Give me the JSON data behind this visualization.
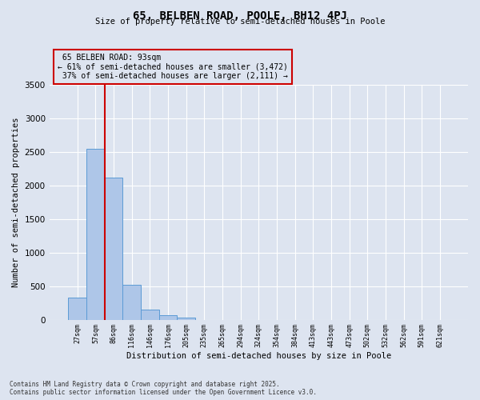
{
  "title": "65, BELBEN ROAD, POOLE, BH12 4PJ",
  "subtitle": "Size of property relative to semi-detached houses in Poole",
  "xlabel": "Distribution of semi-detached houses by size in Poole",
  "ylabel": "Number of semi-detached properties",
  "bar_labels": [
    "27sqm",
    "57sqm",
    "86sqm",
    "116sqm",
    "146sqm",
    "176sqm",
    "205sqm",
    "235sqm",
    "265sqm",
    "294sqm",
    "324sqm",
    "354sqm",
    "384sqm",
    "413sqm",
    "443sqm",
    "473sqm",
    "502sqm",
    "532sqm",
    "562sqm",
    "591sqm",
    "621sqm"
  ],
  "bar_values": [
    330,
    2540,
    2120,
    520,
    150,
    70,
    30,
    0,
    0,
    0,
    0,
    0,
    0,
    0,
    0,
    0,
    0,
    0,
    0,
    0,
    0
  ],
  "bar_color": "#aec6e8",
  "bar_edge_color": "#5b9bd5",
  "property_line_bin": 2,
  "property_line_label": "65 BELBEN ROAD: 93sqm",
  "smaller_pct": "61%",
  "smaller_count": "3,472",
  "larger_pct": "37%",
  "larger_count": "2,111",
  "annotation_box_color": "#cc0000",
  "vline_color": "#cc0000",
  "ylim": [
    0,
    3500
  ],
  "yticks": [
    0,
    500,
    1000,
    1500,
    2000,
    2500,
    3000,
    3500
  ],
  "bg_color": "#dde4f0",
  "grid_color": "#ffffff",
  "footer_line1": "Contains HM Land Registry data © Crown copyright and database right 2025.",
  "footer_line2": "Contains public sector information licensed under the Open Government Licence v3.0."
}
